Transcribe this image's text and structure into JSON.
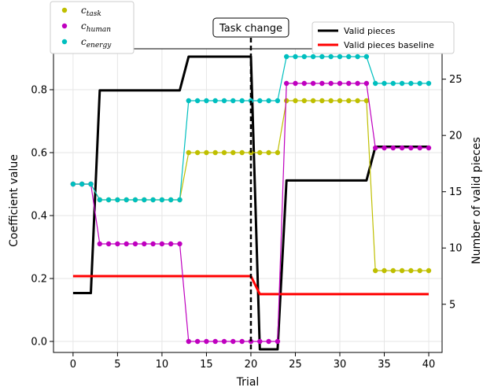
{
  "chart_data": {
    "type": "line",
    "title": "",
    "xlabel": "Trial",
    "ylabel_left": "Coefficient value",
    "ylabel_right": "Number of valid pieces",
    "xlim": [
      -2.2,
      41.5
    ],
    "ylim_left": [
      -0.035,
      0.93
    ],
    "ylim_right": [
      0.72,
      27.7
    ],
    "x_ticks": [
      "0",
      "5",
      "10",
      "15",
      "20",
      "25",
      "30",
      "35",
      "40"
    ],
    "y_ticks_left": [
      "0.0",
      "0.2",
      "0.4",
      "0.6",
      "0.8"
    ],
    "y_ticks_right": [
      "5",
      "10",
      "15",
      "20",
      "25"
    ],
    "grid": true,
    "coefficient_series": [
      {
        "name_base": "c",
        "name_sub": "task",
        "color": "#bfbf00",
        "values": [
          0.5,
          0.5,
          0.5,
          0.45,
          0.45,
          0.45,
          0.45,
          0.45,
          0.45,
          0.45,
          0.45,
          0.45,
          0.45,
          0.6,
          0.6,
          0.6,
          0.6,
          0.6,
          0.6,
          0.6,
          0.6,
          0.6,
          0.6,
          0.6,
          0.765,
          0.765,
          0.765,
          0.765,
          0.765,
          0.765,
          0.765,
          0.765,
          0.765,
          0.765,
          0.225,
          0.225,
          0.225,
          0.225,
          0.225,
          0.225,
          0.225
        ]
      },
      {
        "name_base": "c",
        "name_sub": "human",
        "color": "#bf00bf",
        "values": [
          0.5,
          0.5,
          0.5,
          0.31,
          0.31,
          0.31,
          0.31,
          0.31,
          0.31,
          0.31,
          0.31,
          0.31,
          0.31,
          0.0,
          0.0,
          0.0,
          0.0,
          0.0,
          0.0,
          0.0,
          0.0,
          0.0,
          0.0,
          0.0,
          0.82,
          0.82,
          0.82,
          0.82,
          0.82,
          0.82,
          0.82,
          0.82,
          0.82,
          0.82,
          0.615,
          0.615,
          0.615,
          0.615,
          0.615,
          0.615,
          0.615
        ]
      },
      {
        "name_base": "c",
        "name_sub": "energy",
        "color": "#00bfbf",
        "values": [
          0.5,
          0.5,
          0.5,
          0.45,
          0.45,
          0.45,
          0.45,
          0.45,
          0.45,
          0.45,
          0.45,
          0.45,
          0.45,
          0.765,
          0.765,
          0.765,
          0.765,
          0.765,
          0.765,
          0.765,
          0.765,
          0.765,
          0.765,
          0.765,
          0.905,
          0.905,
          0.905,
          0.905,
          0.905,
          0.905,
          0.905,
          0.905,
          0.905,
          0.905,
          0.82,
          0.82,
          0.82,
          0.82,
          0.82,
          0.82,
          0.82
        ]
      }
    ],
    "pieces_series": [
      {
        "name": "Valid pieces",
        "color": "#000000",
        "x": [
          0,
          2,
          3,
          12,
          13,
          20,
          21,
          23,
          24,
          33,
          34,
          40
        ],
        "y": [
          6,
          6,
          24,
          24,
          27,
          27,
          1,
          1,
          16,
          16,
          19,
          19
        ]
      },
      {
        "name": "Valid pieces baseline",
        "color": "#ff0000",
        "x": [
          0,
          20,
          21,
          40
        ],
        "y": [
          7.5,
          7.5,
          5.9,
          5.9
        ]
      }
    ],
    "annotations": [
      {
        "text": "Task change",
        "x": 20
      }
    ],
    "legend_left": "top-left",
    "legend_right": "top-right"
  }
}
